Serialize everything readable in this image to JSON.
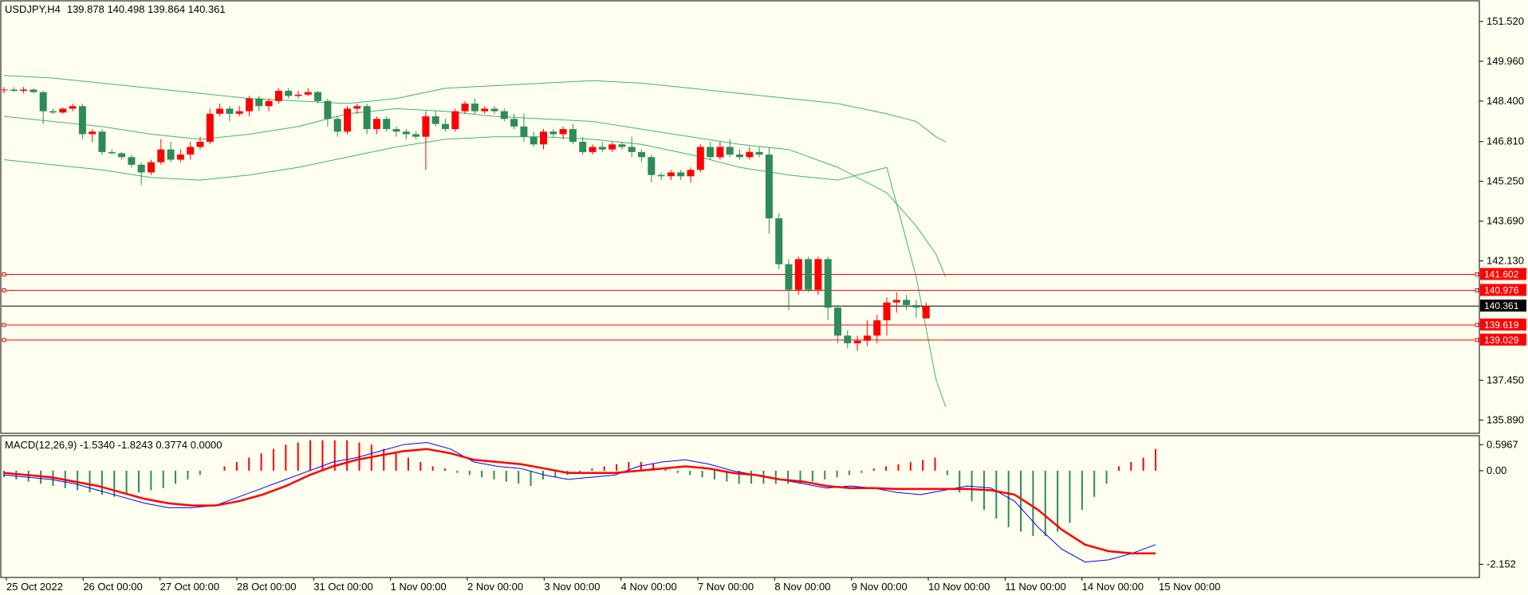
{
  "header": {
    "symbol": "USDJPY,H4",
    "ohlc": "139.878 140.498 139.864 140.361"
  },
  "macd_header": "MACD(12,26,9) -1.5340 -1.8243 0.3774 0.0000",
  "colors": {
    "background": "#fffff0",
    "bull": "#2e8b57",
    "bear": "#ff0000",
    "band": "#3cb371",
    "level": "#ff0000",
    "macd_line": "#0000ff",
    "signal_line": "#ff0000"
  },
  "chart_data": [
    {
      "type": "candlestick",
      "title": "USDJPY,H4",
      "ylim": [
        135.4,
        152.3
      ],
      "y_ticks": [
        "151.520",
        "149.960",
        "148.400",
        "146.810",
        "145.250",
        "143.690",
        "142.130",
        "137.450",
        "135.890"
      ],
      "x_labels": [
        "25 Oct 2022",
        "26 Oct 00:00",
        "27 Oct 00:00",
        "28 Oct 00:00",
        "31 Oct 00:00",
        "1 Nov 00:00",
        "2 Nov 00:00",
        "3 Nov 00:00",
        "4 Nov 00:00",
        "7 Nov 00:00",
        "8 Nov 00:00",
        "9 Nov 00:00",
        "10 Nov 00:00",
        "11 Nov 00:00",
        "14 Nov 00:00",
        "15 Nov 00:00"
      ],
      "levels": [
        {
          "label": "141.602",
          "value": 141.602
        },
        {
          "label": "140.976",
          "value": 140.976
        },
        {
          "label": "139.619",
          "value": 139.619
        },
        {
          "label": "139.029",
          "value": 139.029
        }
      ],
      "current_price": {
        "label": "140.361",
        "value": 140.361
      },
      "candles": [
        [
          148.85,
          148.95,
          148.7,
          148.85
        ],
        [
          148.85,
          148.95,
          148.75,
          148.8
        ],
        [
          148.8,
          148.95,
          148.7,
          148.85
        ],
        [
          148.85,
          148.9,
          148.7,
          148.75
        ],
        [
          148.75,
          148.8,
          147.5,
          148.0
        ],
        [
          148.0,
          148.1,
          147.9,
          147.95
        ],
        [
          147.95,
          148.15,
          147.9,
          148.1
        ],
        [
          148.1,
          148.3,
          148.0,
          148.2
        ],
        [
          148.2,
          148.3,
          146.9,
          147.1
        ],
        [
          147.1,
          147.3,
          146.8,
          147.2
        ],
        [
          147.2,
          147.3,
          146.3,
          146.4
        ],
        [
          146.4,
          146.5,
          146.3,
          146.35
        ],
        [
          146.35,
          146.4,
          146.1,
          146.2
        ],
        [
          146.2,
          146.3,
          145.8,
          145.9
        ],
        [
          145.9,
          146.0,
          145.1,
          145.6
        ],
        [
          145.6,
          146.1,
          145.5,
          146.0
        ],
        [
          146.0,
          146.9,
          145.9,
          146.5
        ],
        [
          146.5,
          146.8,
          146.0,
          146.1
        ],
        [
          146.1,
          146.5,
          146.0,
          146.3
        ],
        [
          146.3,
          146.8,
          146.1,
          146.6
        ],
        [
          146.6,
          147.0,
          146.5,
          146.8
        ],
        [
          146.8,
          148.1,
          146.7,
          147.9
        ],
        [
          147.9,
          148.3,
          147.8,
          148.1
        ],
        [
          148.1,
          148.2,
          147.6,
          147.9
        ],
        [
          147.9,
          148.2,
          147.8,
          148.0
        ],
        [
          148.0,
          148.6,
          147.8,
          148.5
        ],
        [
          148.5,
          148.6,
          148.0,
          148.2
        ],
        [
          148.2,
          148.5,
          148.0,
          148.4
        ],
        [
          148.4,
          148.9,
          148.3,
          148.8
        ],
        [
          148.8,
          148.9,
          148.5,
          148.6
        ],
        [
          148.6,
          148.8,
          148.5,
          148.65
        ],
        [
          148.65,
          148.9,
          148.6,
          148.75
        ],
        [
          148.75,
          148.8,
          148.3,
          148.4
        ],
        [
          148.4,
          148.5,
          147.4,
          147.7
        ],
        [
          147.7,
          147.8,
          147.0,
          147.2
        ],
        [
          147.2,
          148.2,
          147.1,
          148.1
        ],
        [
          148.1,
          148.3,
          147.9,
          148.2
        ],
        [
          148.2,
          148.3,
          147.1,
          147.3
        ],
        [
          147.3,
          147.8,
          147.1,
          147.7
        ],
        [
          147.7,
          147.8,
          147.2,
          147.3
        ],
        [
          147.3,
          147.4,
          147.0,
          147.2
        ],
        [
          147.2,
          147.3,
          146.9,
          147.1
        ],
        [
          147.1,
          147.2,
          146.9,
          147.0
        ],
        [
          147.0,
          148.0,
          145.7,
          147.8
        ],
        [
          147.8,
          148.0,
          147.4,
          147.5
        ],
        [
          147.5,
          147.7,
          147.2,
          147.3
        ],
        [
          147.3,
          148.1,
          147.2,
          148.0
        ],
        [
          148.0,
          148.4,
          147.9,
          148.3
        ],
        [
          148.3,
          148.5,
          147.9,
          148.0
        ],
        [
          148.0,
          148.2,
          147.9,
          148.1
        ],
        [
          148.1,
          148.2,
          147.9,
          148.0
        ],
        [
          148.0,
          148.1,
          147.6,
          147.7
        ],
        [
          147.7,
          147.9,
          147.3,
          147.4
        ],
        [
          147.4,
          147.9,
          146.8,
          147.0
        ],
        [
          147.0,
          147.2,
          146.6,
          146.7
        ],
        [
          146.7,
          147.3,
          146.5,
          147.2
        ],
        [
          147.2,
          147.3,
          147.0,
          147.1
        ],
        [
          147.1,
          147.4,
          146.9,
          147.3
        ],
        [
          147.3,
          147.5,
          146.7,
          146.8
        ],
        [
          146.8,
          147.0,
          146.3,
          146.4
        ],
        [
          146.4,
          146.7,
          146.3,
          146.6
        ],
        [
          146.6,
          146.8,
          146.4,
          146.5
        ],
        [
          146.5,
          146.8,
          146.4,
          146.7
        ],
        [
          146.7,
          146.8,
          146.5,
          146.6
        ],
        [
          146.6,
          147.0,
          146.2,
          146.4
        ],
        [
          146.4,
          146.5,
          146.0,
          146.2
        ],
        [
          146.2,
          146.3,
          145.2,
          145.5
        ],
        [
          145.5,
          145.6,
          145.3,
          145.45
        ],
        [
          145.45,
          145.7,
          145.3,
          145.6
        ],
        [
          145.6,
          145.7,
          145.3,
          145.45
        ],
        [
          145.45,
          145.8,
          145.2,
          145.7
        ],
        [
          145.7,
          146.7,
          145.6,
          146.6
        ],
        [
          146.6,
          146.8,
          146.1,
          146.2
        ],
        [
          146.2,
          146.8,
          146.1,
          146.6
        ],
        [
          146.6,
          146.9,
          146.2,
          146.3
        ],
        [
          146.3,
          146.5,
          146.1,
          146.2
        ],
        [
          146.2,
          146.6,
          146.1,
          146.4
        ],
        [
          146.4,
          146.6,
          146.2,
          146.3
        ],
        [
          146.3,
          146.6,
          143.2,
          143.8
        ],
        [
          143.8,
          144.0,
          141.8,
          142.0
        ],
        [
          142.0,
          142.2,
          140.2,
          141.0
        ],
        [
          141.0,
          142.3,
          140.8,
          142.2
        ],
        [
          142.2,
          142.3,
          140.9,
          141.0
        ],
        [
          141.0,
          142.3,
          140.8,
          142.2
        ],
        [
          142.2,
          142.3,
          139.8,
          140.3
        ],
        [
          140.3,
          140.4,
          138.9,
          139.2
        ],
        [
          139.2,
          139.4,
          138.7,
          138.9
        ],
        [
          138.9,
          139.2,
          138.6,
          139.0
        ],
        [
          139.0,
          139.8,
          138.8,
          139.2
        ],
        [
          139.2,
          140.0,
          138.9,
          139.8
        ],
        [
          139.8,
          140.7,
          139.2,
          140.5
        ],
        [
          140.5,
          140.9,
          140.1,
          140.6
        ],
        [
          140.6,
          140.8,
          140.2,
          140.4
        ],
        [
          140.4,
          140.6,
          139.9,
          140.3
        ],
        [
          139.878,
          140.498,
          139.864,
          140.361
        ]
      ],
      "bb_upper": [
        149.4,
        149.3,
        149.1,
        148.9,
        148.7,
        148.5,
        148.4,
        148.3,
        148.5,
        148.9,
        149.0,
        149.1,
        149.2,
        149.1,
        148.9,
        148.7,
        148.5,
        148.3,
        147.9,
        147.6,
        147.0,
        146.8
      ],
      "bb_middle": [
        147.8,
        147.6,
        147.4,
        147.1,
        146.9,
        147.1,
        147.4,
        147.9,
        148.1,
        148.0,
        147.8,
        147.7,
        147.6,
        147.3,
        147.0,
        146.7,
        146.5,
        145.8,
        144.8,
        143.5,
        142.4,
        141.5
      ],
      "bb_lower": [
        146.1,
        145.9,
        145.7,
        145.4,
        145.3,
        145.5,
        145.8,
        146.2,
        146.6,
        146.9,
        147.0,
        147.0,
        146.9,
        146.7,
        146.3,
        145.8,
        145.5,
        145.3,
        145.8,
        141.5,
        137.5,
        136.4
      ],
      "bb_x": [
        0,
        5,
        10,
        15,
        20,
        25,
        30,
        35,
        40,
        45,
        50,
        55,
        60,
        65,
        70,
        75,
        80,
        85,
        90,
        93,
        95,
        96
      ]
    },
    {
      "type": "macd",
      "title": "MACD(12,26,9) -1.5340 -1.8243 0.3774 0.0000",
      "ylim": [
        -2.4,
        0.75
      ],
      "y_ticks": [
        "0.5967",
        "0.00",
        "-2.152"
      ],
      "histogram": [
        -0.15,
        -0.2,
        -0.25,
        -0.3,
        -0.35,
        -0.4,
        -0.45,
        -0.5,
        -0.55,
        -0.6,
        -0.55,
        -0.5,
        -0.45,
        -0.4,
        -0.3,
        -0.2,
        -0.1,
        0.0,
        0.1,
        0.2,
        0.3,
        0.4,
        0.5,
        0.6,
        0.65,
        0.7,
        0.7,
        0.7,
        0.7,
        0.65,
        0.6,
        0.5,
        0.4,
        0.3,
        0.2,
        0.1,
        0.05,
        -0.05,
        -0.1,
        -0.15,
        -0.2,
        -0.25,
        -0.3,
        -0.35,
        -0.2,
        -0.15,
        -0.1,
        -0.05,
        0.05,
        0.1,
        0.15,
        0.2,
        0.2,
        0.15,
        0.05,
        -0.05,
        -0.1,
        -0.15,
        -0.2,
        -0.25,
        -0.3,
        -0.3,
        -0.3,
        -0.3,
        -0.3,
        -0.3,
        -0.25,
        -0.2,
        -0.15,
        -0.1,
        -0.05,
        0.05,
        0.1,
        0.15,
        0.2,
        0.25,
        0.3,
        -0.1,
        -0.5,
        -0.7,
        -0.9,
        -1.1,
        -1.3,
        -1.4,
        -1.5,
        -1.5,
        -1.4,
        -1.2,
        -0.9,
        -0.6,
        -0.3,
        0.1,
        0.2,
        0.3,
        0.5
      ],
      "macd_line": [
        -0.1,
        -0.15,
        -0.2,
        -0.3,
        -0.45,
        -0.6,
        -0.75,
        -0.85,
        -0.85,
        -0.8,
        -0.6,
        -0.4,
        -0.2,
        0.0,
        0.2,
        0.3,
        0.45,
        0.6,
        0.65,
        0.5,
        0.2,
        0.1,
        0.05,
        -0.1,
        -0.2,
        -0.15,
        -0.1,
        0.1,
        0.2,
        0.25,
        0.15,
        0.0,
        -0.1,
        -0.2,
        -0.3,
        -0.4,
        -0.35,
        -0.4,
        -0.5,
        -0.55,
        -0.45,
        -0.35,
        -0.4,
        -0.7,
        -1.3,
        -1.8,
        -2.1,
        -2.05,
        -1.9,
        -1.7
      ],
      "signal_line": [
        -0.05,
        -0.1,
        -0.15,
        -0.25,
        -0.35,
        -0.5,
        -0.65,
        -0.75,
        -0.8,
        -0.8,
        -0.7,
        -0.55,
        -0.35,
        -0.1,
        0.1,
        0.25,
        0.35,
        0.45,
        0.5,
        0.4,
        0.25,
        0.2,
        0.15,
        0.05,
        -0.05,
        -0.05,
        -0.05,
        0.0,
        0.05,
        0.1,
        0.05,
        -0.05,
        -0.1,
        -0.2,
        -0.25,
        -0.35,
        -0.4,
        -0.4,
        -0.42,
        -0.42,
        -0.42,
        -0.42,
        -0.45,
        -0.55,
        -0.9,
        -1.35,
        -1.7,
        -1.85,
        -1.9,
        -1.9
      ]
    }
  ]
}
